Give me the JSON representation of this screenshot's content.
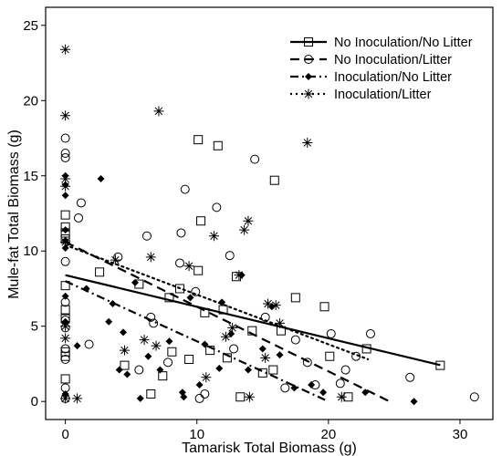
{
  "chart_data": {
    "type": "scatter",
    "title": "",
    "xlabel": "Tamarisk Total Biomass (g)",
    "ylabel": "Mule-fat Total Biomass (g)",
    "xlim": [
      -1.5,
      32.5
    ],
    "ylim": [
      -1.2,
      26.2
    ],
    "xticks": [
      0,
      10,
      20,
      30
    ],
    "yticks": [
      0,
      5,
      10,
      15,
      20,
      25
    ],
    "grid": false,
    "legend_position": "top-right",
    "series": [
      {
        "name": "No Inoculation/No Litter",
        "marker": "square",
        "line_style": "solid",
        "fit": {
          "intercept": 8.4,
          "slope": -0.21,
          "x_range": [
            0,
            28.5
          ]
        },
        "points": [
          [
            0,
            12.4
          ],
          [
            0,
            11.2
          ],
          [
            0,
            11.6
          ],
          [
            0,
            10.8
          ],
          [
            0,
            7.7
          ],
          [
            0,
            6.1
          ],
          [
            0,
            5.5
          ],
          [
            0,
            3.3
          ],
          [
            0,
            3.0
          ],
          [
            0,
            1.5
          ],
          [
            2.6,
            8.6
          ],
          [
            4.5,
            2.4
          ],
          [
            5.6,
            7.8
          ],
          [
            6.5,
            0.5
          ],
          [
            7.9,
            6.9
          ],
          [
            8.1,
            3.3
          ],
          [
            8.7,
            7.5
          ],
          [
            9.4,
            2.8
          ],
          [
            10.1,
            17.4
          ],
          [
            10.1,
            8.7
          ],
          [
            10.3,
            12.0
          ],
          [
            10.6,
            5.9
          ],
          [
            11.0,
            3.4
          ],
          [
            11.6,
            17.0
          ],
          [
            12.0,
            6.1
          ],
          [
            12.3,
            2.9
          ],
          [
            13.0,
            8.3
          ],
          [
            13.3,
            0.3
          ],
          [
            14.2,
            4.7
          ],
          [
            15.0,
            1.9
          ],
          [
            15.9,
            14.7
          ],
          [
            15.8,
            2.1
          ],
          [
            16.4,
            4.7
          ],
          [
            17.5,
            6.9
          ],
          [
            19.7,
            6.3
          ],
          [
            20.1,
            3.0
          ],
          [
            21.5,
            0.3
          ],
          [
            22.9,
            3.5
          ],
          [
            28.5,
            2.4
          ],
          [
            7.4,
            1.7
          ]
        ]
      },
      {
        "name": "No Inoculation/Litter",
        "marker": "circle",
        "line_style": "dashed",
        "fit": {
          "intercept": 10.6,
          "slope": -0.43,
          "x_range": [
            0,
            24.8
          ]
        },
        "points": [
          [
            0,
            17.5
          ],
          [
            0,
            16.5
          ],
          [
            0,
            16.2
          ],
          [
            0,
            9.3
          ],
          [
            0,
            6.6
          ],
          [
            0,
            5.4
          ],
          [
            0,
            4.9
          ],
          [
            0,
            3.5
          ],
          [
            0,
            2.8
          ],
          [
            0,
            0.9
          ],
          [
            0,
            0.2
          ],
          [
            1.0,
            12.2
          ],
          [
            1.2,
            13.2
          ],
          [
            1.8,
            3.8
          ],
          [
            4.0,
            9.6
          ],
          [
            5.6,
            2.1
          ],
          [
            6.2,
            11.0
          ],
          [
            6.5,
            5.6
          ],
          [
            7.8,
            2.6
          ],
          [
            8.7,
            9.2
          ],
          [
            8.8,
            11.2
          ],
          [
            9.1,
            14.1
          ],
          [
            9.9,
            7.3
          ],
          [
            10.2,
            0.2
          ],
          [
            10.6,
            0.5
          ],
          [
            11.5,
            12.9
          ],
          [
            12.5,
            9.7
          ],
          [
            12.8,
            3.5
          ],
          [
            14.4,
            16.1
          ],
          [
            15.2,
            5.6
          ],
          [
            16.7,
            0.9
          ],
          [
            17.5,
            4.1
          ],
          [
            18.4,
            2.6
          ],
          [
            19.0,
            1.1
          ],
          [
            20.2,
            4.5
          ],
          [
            20.9,
            1.2
          ],
          [
            21.3,
            2.1
          ],
          [
            22.1,
            3.0
          ],
          [
            23.2,
            4.5
          ],
          [
            26.2,
            1.6
          ],
          [
            31.1,
            0.3
          ],
          [
            6.7,
            5.2
          ]
        ]
      },
      {
        "name": "Inoculation/No Litter",
        "marker": "diamond",
        "line_style": "dash-dot",
        "fit": {
          "intercept": 8.0,
          "slope": -0.4,
          "x_range": [
            0,
            20.0
          ]
        },
        "points": [
          [
            0,
            15.0
          ],
          [
            0,
            14.4
          ],
          [
            0,
            13.7
          ],
          [
            0,
            11.4
          ],
          [
            0,
            10.7
          ],
          [
            0,
            10.2
          ],
          [
            0,
            7.0
          ],
          [
            0,
            5.3
          ],
          [
            0,
            0.5
          ],
          [
            0.9,
            3.7
          ],
          [
            1.6,
            7.5
          ],
          [
            2.7,
            14.8
          ],
          [
            3.3,
            5.3
          ],
          [
            3.6,
            6.5
          ],
          [
            4.1,
            2.1
          ],
          [
            4.4,
            4.6
          ],
          [
            4.7,
            1.8
          ],
          [
            5.3,
            7.9
          ],
          [
            5.7,
            0.2
          ],
          [
            6.3,
            3.0
          ],
          [
            7.2,
            2.1
          ],
          [
            7.9,
            4.0
          ],
          [
            8.9,
            0.6
          ],
          [
            9.0,
            0.3
          ],
          [
            9.5,
            6.9
          ],
          [
            10.2,
            1.1
          ],
          [
            10.6,
            3.8
          ],
          [
            11.7,
            2.2
          ],
          [
            11.9,
            6.6
          ],
          [
            12.6,
            4.5
          ],
          [
            13.4,
            8.4
          ],
          [
            13.9,
            2.1
          ],
          [
            15.0,
            3.5
          ],
          [
            15.7,
            6.3
          ],
          [
            16.3,
            3.1
          ],
          [
            17.4,
            0.9
          ],
          [
            18.7,
            1.1
          ],
          [
            19.6,
            0.6
          ],
          [
            22.8,
            0.6
          ],
          [
            26.5,
            0
          ]
        ]
      },
      {
        "name": "Inoculation/Litter",
        "marker": "asterisk",
        "line_style": "dotted",
        "fit": {
          "intercept": 10.4,
          "slope": -0.33,
          "x_range": [
            0,
            23.0
          ]
        },
        "points": [
          [
            0,
            23.4
          ],
          [
            0,
            19.0
          ],
          [
            0,
            14.8
          ],
          [
            0,
            14.3
          ],
          [
            0,
            10.6
          ],
          [
            0,
            5.0
          ],
          [
            0,
            4.2
          ],
          [
            0,
            0.2
          ],
          [
            0.9,
            0.2
          ],
          [
            3.8,
            9.4
          ],
          [
            4.5,
            3.4
          ],
          [
            6.0,
            4.1
          ],
          [
            6.5,
            9.6
          ],
          [
            6.9,
            3.7
          ],
          [
            7.1,
            19.3
          ],
          [
            9.4,
            9.0
          ],
          [
            10.7,
            1.6
          ],
          [
            11.3,
            11.0
          ],
          [
            12.2,
            4.3
          ],
          [
            12.7,
            4.9
          ],
          [
            13.2,
            8.4
          ],
          [
            13.6,
            11.4
          ],
          [
            13.9,
            12.0
          ],
          [
            14.0,
            0.3
          ],
          [
            15.2,
            2.9
          ],
          [
            15.4,
            6.5
          ],
          [
            16.0,
            6.4
          ],
          [
            16.3,
            5.2
          ],
          [
            18.4,
            17.2
          ],
          [
            21.0,
            0.3
          ]
        ]
      }
    ]
  }
}
